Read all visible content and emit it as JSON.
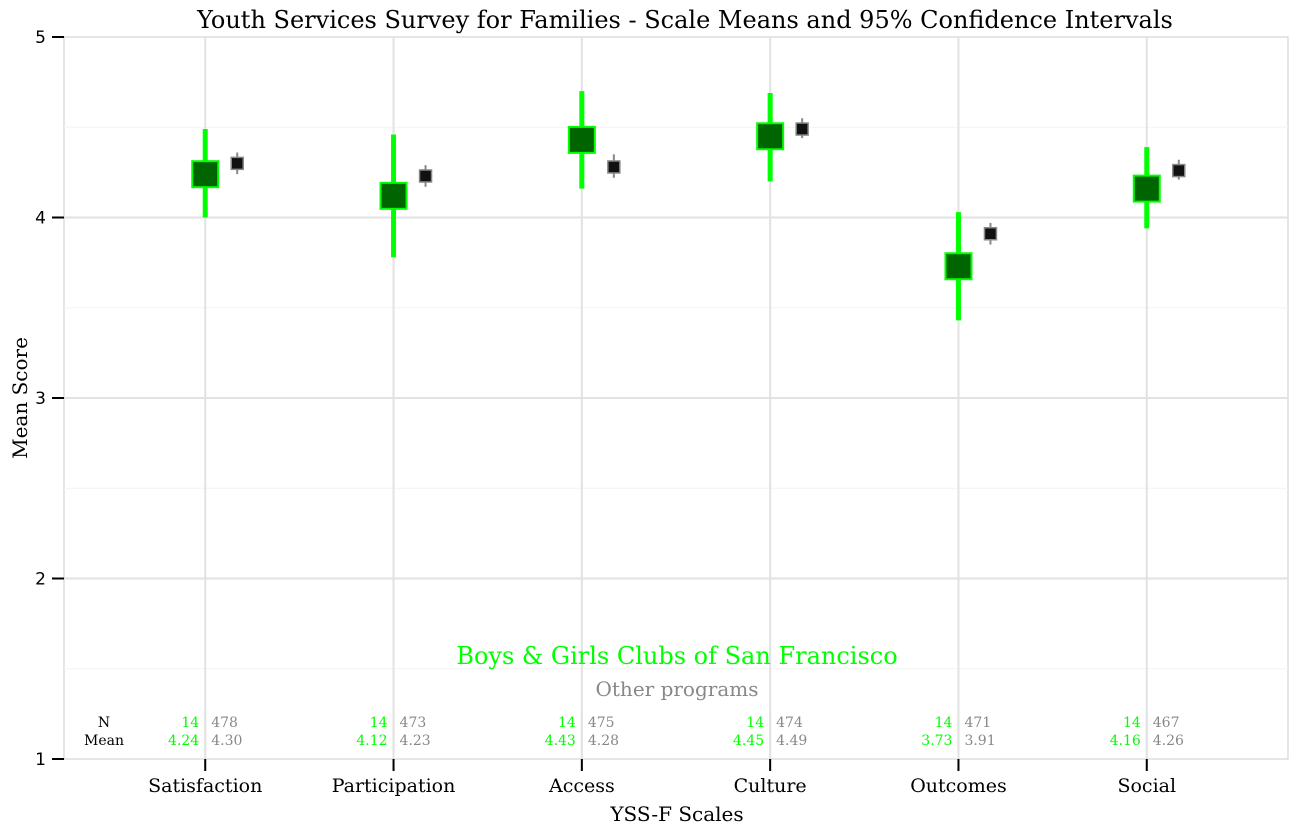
{
  "chart_data": {
    "type": "scatter",
    "title": "Youth Services Survey for Families - Scale Means and 95% Confidence Intervals",
    "xlabel": "YSS-F Scales",
    "ylabel": "Mean Score",
    "categories": [
      "Satisfaction",
      "Participation",
      "Access",
      "Culture",
      "Outcomes",
      "Social"
    ],
    "ylim": [
      1,
      5
    ],
    "yticks": [
      "1",
      "2",
      "3",
      "4",
      "5"
    ],
    "grid": true,
    "series": [
      {
        "name": "Boys & Girls Clubs of San Francisco",
        "color": "#00ff00",
        "fill": "#006400",
        "means": [
          4.24,
          4.12,
          4.43,
          4.45,
          3.73,
          4.16
        ],
        "ci_low": [
          4.0,
          3.78,
          4.16,
          4.2,
          3.43,
          3.94
        ],
        "ci_high": [
          4.49,
          4.46,
          4.7,
          4.69,
          4.03,
          4.39
        ],
        "n": [
          14,
          14,
          14,
          14,
          14,
          14
        ],
        "mean_labels": [
          "4.24",
          "4.12",
          "4.43",
          "4.45",
          "3.73",
          "4.16"
        ]
      },
      {
        "name": "Other programs",
        "color": "#888888",
        "fill": "#111111",
        "means": [
          4.3,
          4.23,
          4.28,
          4.49,
          3.91,
          4.26
        ],
        "ci_low": [
          4.24,
          4.17,
          4.22,
          4.44,
          3.85,
          4.21
        ],
        "ci_high": [
          4.36,
          4.29,
          4.35,
          4.55,
          3.97,
          4.32
        ],
        "n": [
          478,
          473,
          475,
          474,
          471,
          467
        ],
        "mean_labels": [
          "4.30",
          "4.23",
          "4.28",
          "4.49",
          "3.91",
          "4.26"
        ]
      }
    ],
    "row_labels": {
      "n": "N",
      "mean": "Mean"
    }
  }
}
